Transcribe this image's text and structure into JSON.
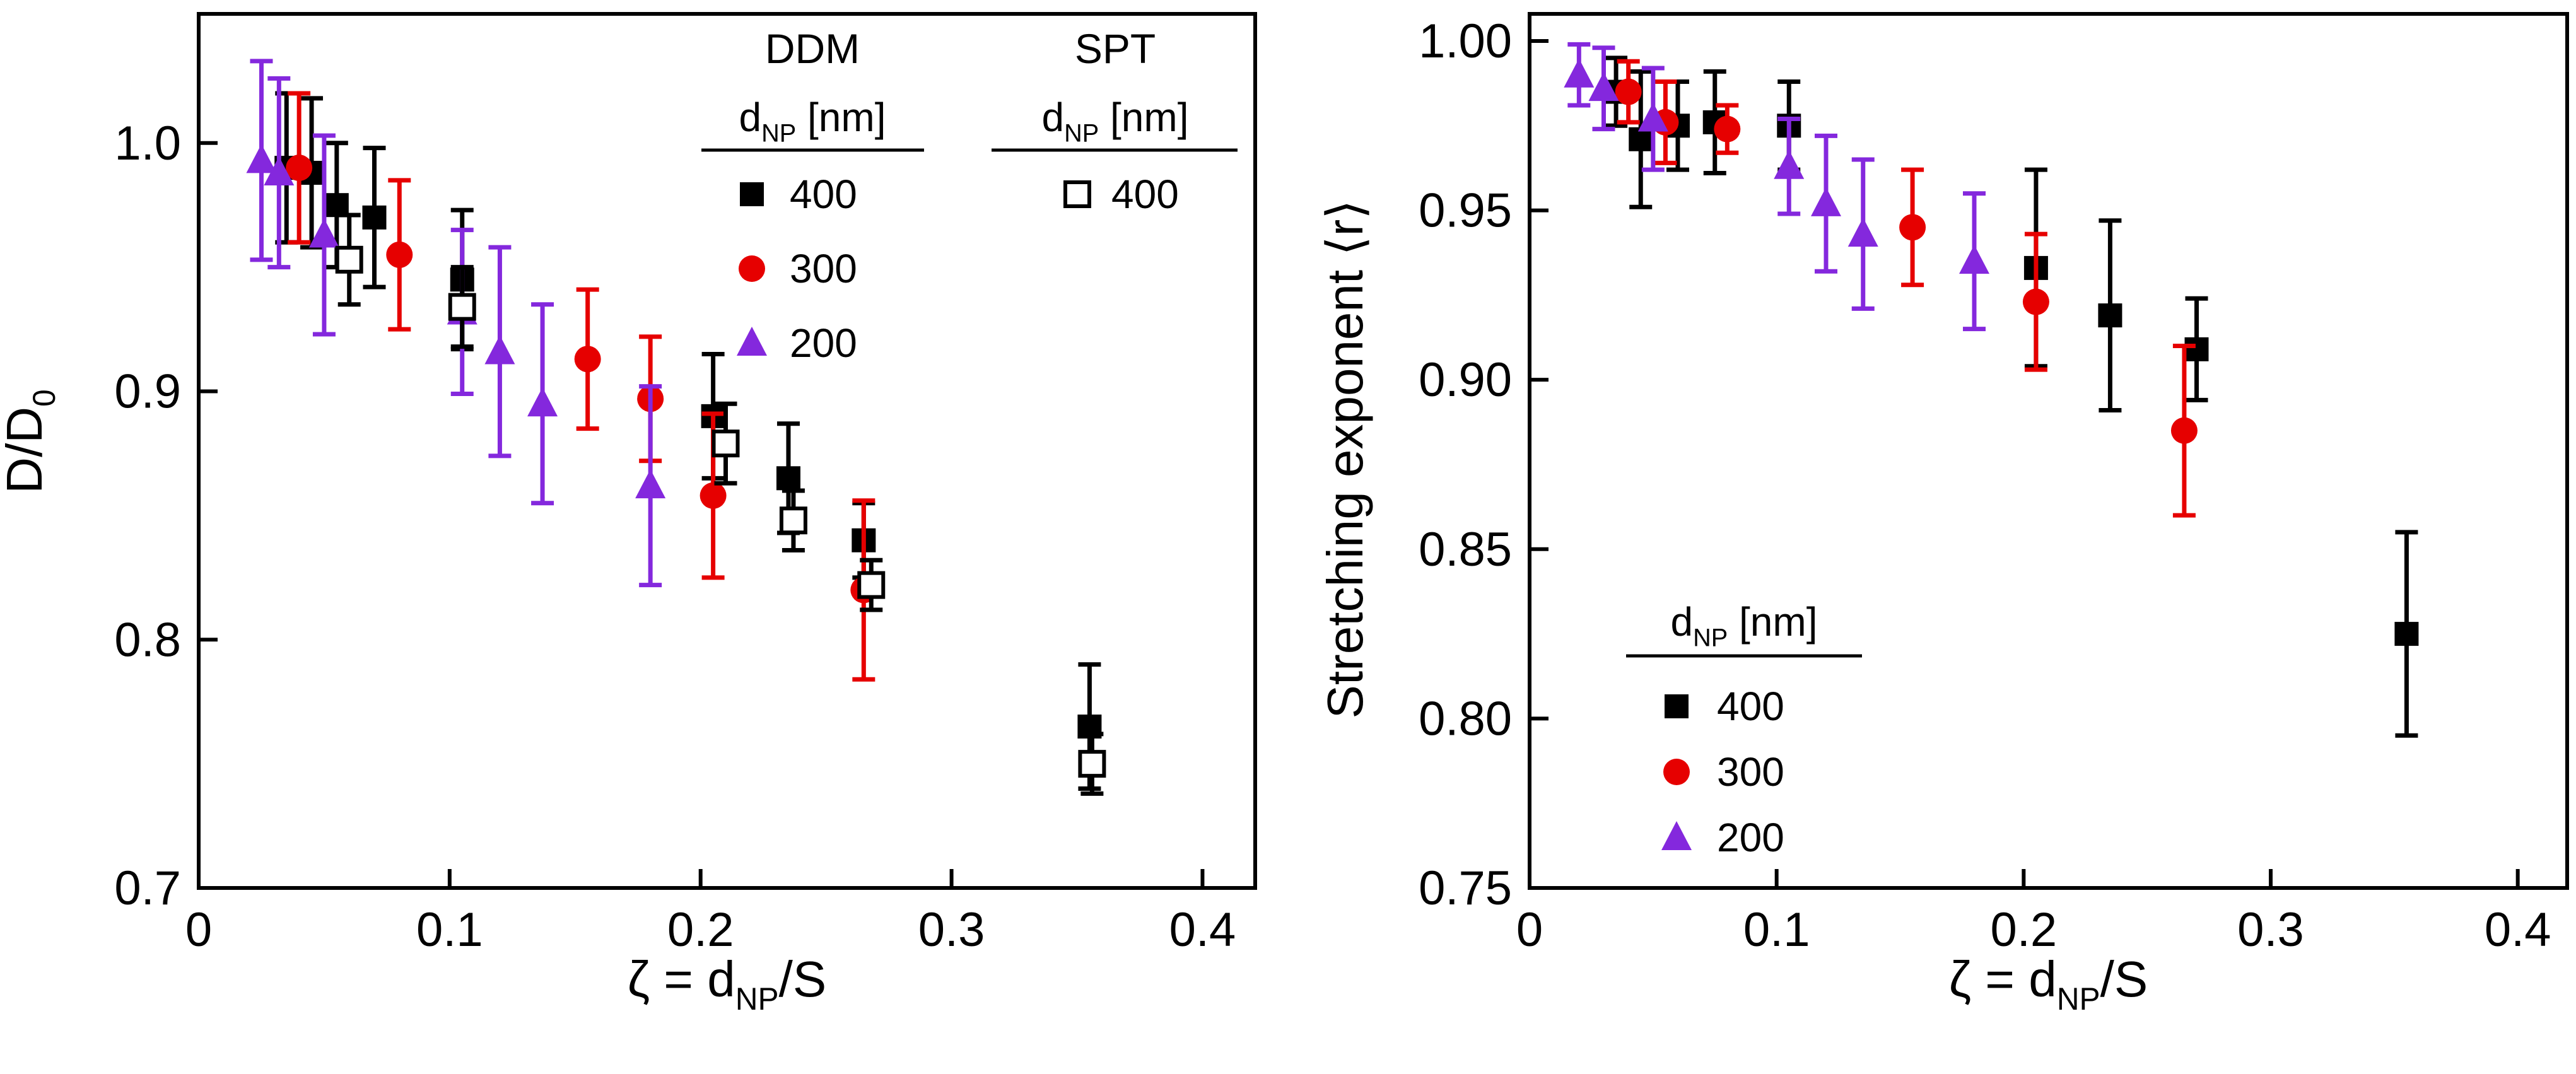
{
  "figure": {
    "background": "#ffffff",
    "description": "Two-panel scatter figure with error bars"
  },
  "colors": {
    "black": "#000000",
    "red": "#e60000",
    "purple": "#8428dd",
    "frame": "#000000"
  },
  "chart_data": [
    {
      "type": "scatter",
      "title": "",
      "xlabel": "ζ = d~NP~/S",
      "ylabel": "D/D~0~",
      "xlim": [
        0,
        0.421
      ],
      "ylim": [
        0.7,
        1.052
      ],
      "xticks": [
        0,
        0.1,
        0.2,
        0.3,
        0.4
      ],
      "xtick_labels": [
        "0",
        "0.1",
        "0.2",
        "0.3",
        "0.4"
      ],
      "yticks": [
        0.7,
        0.8,
        0.9,
        1.0
      ],
      "ytick_labels": [
        "0.7",
        "0.8",
        "0.9",
        "1.0"
      ],
      "grid": false,
      "legend_position": "top-right-inside",
      "legend": {
        "columns": [
          {
            "header": "DDM",
            "subheader": "d~NP~ [nm]",
            "items": [
              {
                "marker": "square",
                "open": false,
                "color": "#000000",
                "label": "400"
              },
              {
                "marker": "circle",
                "open": false,
                "color": "#e60000",
                "label": "300"
              },
              {
                "marker": "triangle",
                "open": false,
                "color": "#8428dd",
                "label": "200"
              }
            ]
          },
          {
            "header": "SPT",
            "subheader": "d~NP~ [nm]",
            "items": [
              {
                "marker": "square",
                "open": true,
                "color": "#000000",
                "label": "400"
              }
            ]
          }
        ]
      },
      "series": [
        {
          "name": "DDM 400 nm",
          "marker": "square",
          "open": false,
          "color": "#000000",
          "points": [
            [
              0.035,
              0.99,
              0.03
            ],
            [
              0.045,
              0.988,
              0.03
            ],
            [
              0.055,
              0.975,
              0.025
            ],
            [
              0.07,
              0.97,
              0.028
            ],
            [
              0.105,
              0.945,
              0.028
            ],
            [
              0.205,
              0.89,
              0.025
            ],
            [
              0.235,
              0.865,
              0.022
            ],
            [
              0.265,
              0.84,
              0.015
            ],
            [
              0.355,
              0.765,
              0.025
            ]
          ]
        },
        {
          "name": "DDM 300 nm",
          "marker": "circle",
          "open": false,
          "color": "#e60000",
          "points": [
            [
              0.04,
              0.99,
              0.03
            ],
            [
              0.08,
              0.955,
              0.03
            ],
            [
              0.155,
              0.913,
              0.028
            ],
            [
              0.18,
              0.897,
              0.025
            ],
            [
              0.205,
              0.858,
              0.033
            ],
            [
              0.265,
              0.82,
              0.036
            ]
          ]
        },
        {
          "name": "DDM 200 nm",
          "marker": "triangle",
          "open": false,
          "color": "#8428dd",
          "points": [
            [
              0.025,
              0.993,
              0.04
            ],
            [
              0.032,
              0.988,
              0.038
            ],
            [
              0.05,
              0.963,
              0.04
            ],
            [
              0.105,
              0.932,
              0.033
            ],
            [
              0.12,
              0.916,
              0.042
            ],
            [
              0.137,
              0.895,
              0.04
            ],
            [
              0.18,
              0.862,
              0.04
            ]
          ]
        },
        {
          "name": "SPT 400 nm",
          "marker": "square",
          "open": true,
          "color": "#000000",
          "points": [
            [
              0.06,
              0.953,
              0.018
            ],
            [
              0.105,
              0.934,
              0.016
            ],
            [
              0.21,
              0.879,
              0.016
            ],
            [
              0.237,
              0.848,
              0.012
            ],
            [
              0.268,
              0.822,
              0.01
            ],
            [
              0.356,
              0.75,
              0.012
            ]
          ]
        }
      ]
    },
    {
      "type": "scatter",
      "title": "",
      "xlabel": "ζ = d~NP~/S",
      "ylabel": "Stretching exponent ⟨r⟩",
      "xlim": [
        0,
        0.42
      ],
      "ylim": [
        0.75,
        1.008
      ],
      "xticks": [
        0,
        0.1,
        0.2,
        0.3,
        0.4
      ],
      "xtick_labels": [
        "0",
        "0.1",
        "0.2",
        "0.3",
        "0.4"
      ],
      "yticks": [
        0.75,
        0.8,
        0.85,
        0.9,
        0.95,
        1.0
      ],
      "ytick_labels": [
        "0.75",
        "0.80",
        "0.85",
        "0.90",
        "0.95",
        "1.00"
      ],
      "grid": false,
      "legend_position": "left-lower-inside",
      "legend": {
        "columns": [
          {
            "header": "",
            "subheader": "d~NP~ [nm]",
            "items": [
              {
                "marker": "square",
                "open": false,
                "color": "#000000",
                "label": "400"
              },
              {
                "marker": "circle",
                "open": false,
                "color": "#e60000",
                "label": "300"
              },
              {
                "marker": "triangle",
                "open": false,
                "color": "#8428dd",
                "label": "200"
              }
            ]
          }
        ]
      },
      "series": [
        {
          "name": "400 nm",
          "marker": "square",
          "open": false,
          "color": "#000000",
          "points": [
            [
              0.035,
              0.985,
              0.01
            ],
            [
              0.045,
              0.971,
              0.02
            ],
            [
              0.06,
              0.975,
              0.013
            ],
            [
              0.075,
              0.976,
              0.015
            ],
            [
              0.105,
              0.975,
              0.013
            ],
            [
              0.205,
              0.933,
              0.029
            ],
            [
              0.235,
              0.919,
              0.028
            ],
            [
              0.27,
              0.909,
              0.015
            ],
            [
              0.355,
              0.825,
              0.03
            ]
          ]
        },
        {
          "name": "300 nm",
          "marker": "circle",
          "open": false,
          "color": "#e60000",
          "points": [
            [
              0.04,
              0.985,
              0.009
            ],
            [
              0.055,
              0.976,
              0.012
            ],
            [
              0.08,
              0.974,
              0.007
            ],
            [
              0.155,
              0.945,
              0.017
            ],
            [
              0.205,
              0.923,
              0.02
            ],
            [
              0.265,
              0.885,
              0.025
            ]
          ]
        },
        {
          "name": "200 nm",
          "marker": "triangle",
          "open": false,
          "color": "#8428dd",
          "points": [
            [
              0.02,
              0.99,
              0.009
            ],
            [
              0.03,
              0.986,
              0.012
            ],
            [
              0.05,
              0.977,
              0.015
            ],
            [
              0.105,
              0.963,
              0.014
            ],
            [
              0.12,
              0.952,
              0.02
            ],
            [
              0.135,
              0.943,
              0.022
            ],
            [
              0.18,
              0.935,
              0.02
            ]
          ]
        }
      ]
    }
  ]
}
